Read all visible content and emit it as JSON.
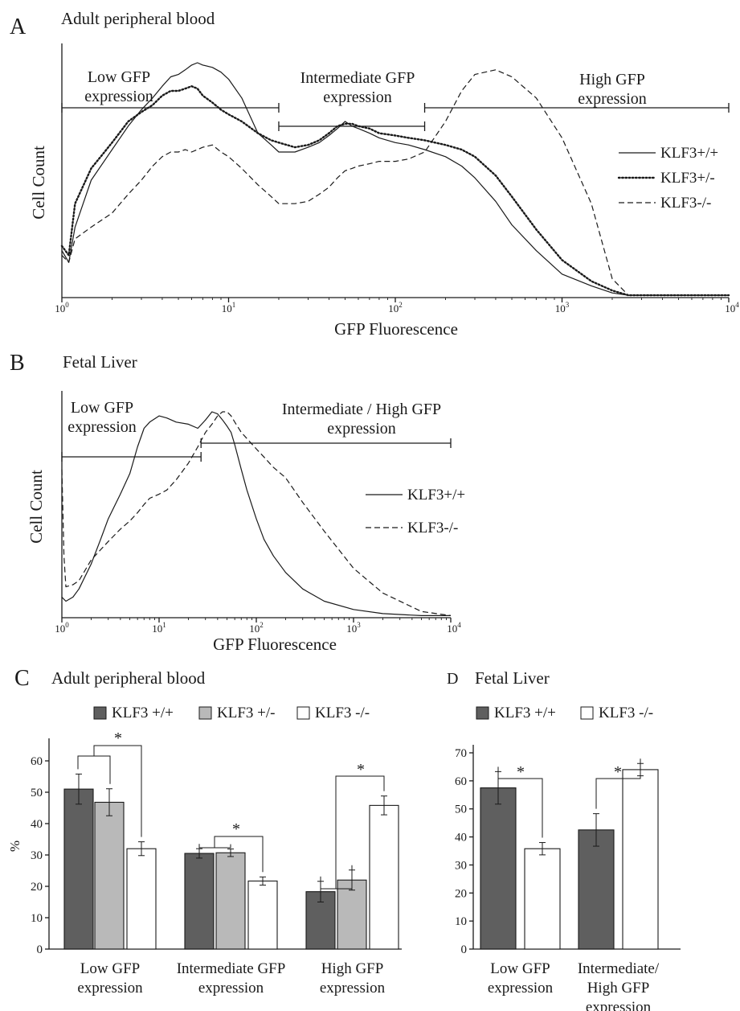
{
  "panels": {
    "A": {
      "letter": "A",
      "title": "Adult peripheral blood",
      "ylabel": "Cell Count",
      "xlabel": "GFP Fluorescence",
      "ranges": [
        {
          "label": [
            "Low GFP",
            "expression"
          ],
          "from": 1,
          "to": 20
        },
        {
          "label": [
            "Intermediate GFP",
            "expression"
          ],
          "from": 20,
          "to": 150
        },
        {
          "label": [
            "High GFP",
            "expression"
          ],
          "from": 150,
          "to": 10000
        }
      ],
      "legend": [
        "KLF3+/+",
        "KLF3+/-",
        "KLF3-/-"
      ]
    },
    "B": {
      "letter": "B",
      "title": "Fetal Liver",
      "ylabel": "Cell Count",
      "xlabel": "GFP Fluorescence",
      "ranges": [
        {
          "label": [
            "Low GFP",
            "expression"
          ],
          "from": 1,
          "to": 27
        },
        {
          "label": [
            "Intermediate / High GFP",
            "expression"
          ],
          "from": 27,
          "to": 10000
        }
      ],
      "legend": [
        "KLF3+/+",
        "KLF3-/-"
      ]
    },
    "C": {
      "letter": "C",
      "title": "Adult peripheral blood",
      "legend": [
        "KLF3 +/+",
        "KLF3 +/-",
        "KLF3 -/-"
      ],
      "ylabel": "%",
      "significance": "*"
    },
    "D": {
      "letter": "D",
      "title": "Fetal Liver",
      "legend": [
        "KLF3 +/+",
        "KLF3 -/-"
      ],
      "significance": "*"
    }
  },
  "colors": {
    "wt": "#5f5f5f",
    "het": "#b9b9b9",
    "ko": "#ffffff",
    "ink": "#1a1a1a"
  },
  "chart_data": [
    {
      "type": "line",
      "panel": "A",
      "xscale": "log",
      "xlim": [
        1,
        10000
      ],
      "xticks": [
        "10^0",
        "10^1",
        "10^2",
        "10^3",
        "10^4"
      ],
      "series": [
        {
          "name": "KLF3+/+",
          "style": "solid",
          "x": [
            1,
            1.1,
            1.2,
            1.5,
            2,
            2.5,
            3,
            3.5,
            4,
            4.5,
            5,
            5.5,
            6,
            6.5,
            7,
            8,
            9,
            10,
            12,
            15,
            18,
            20,
            25,
            30,
            35,
            40,
            45,
            50,
            55,
            60,
            70,
            80,
            100,
            120,
            150,
            200,
            250,
            300,
            400,
            500,
            700,
            1000,
            1500,
            2000,
            2500,
            3000,
            5000,
            10000
          ],
          "y": [
            20,
            15,
            30,
            50,
            63,
            73,
            80,
            85,
            90,
            94,
            95,
            97,
            99,
            100,
            99,
            98,
            96,
            93,
            85,
            70,
            65,
            62,
            62,
            64,
            66,
            69,
            72,
            75,
            73,
            72,
            70,
            68,
            66,
            65,
            63,
            60,
            56,
            51,
            41,
            31,
            20,
            10,
            5,
            2,
            1,
            1,
            1,
            1
          ]
        },
        {
          "name": "KLF3+/-",
          "style": "dotted",
          "x": [
            1,
            1.1,
            1.2,
            1.5,
            2,
            2.5,
            3,
            3.5,
            4,
            4.5,
            5,
            5.5,
            6,
            6.5,
            7,
            8,
            9,
            10,
            12,
            15,
            18,
            20,
            25,
            30,
            35,
            40,
            45,
            50,
            55,
            60,
            70,
            80,
            100,
            120,
            150,
            200,
            250,
            300,
            400,
            500,
            700,
            1000,
            1500,
            2000,
            2500,
            3000,
            5000,
            10000
          ],
          "y": [
            22,
            18,
            40,
            55,
            66,
            75,
            79,
            82,
            86,
            88,
            88,
            89,
            90,
            89,
            86,
            83,
            80,
            78,
            75,
            70,
            67,
            66,
            64,
            65,
            67,
            70,
            73,
            74,
            74,
            73,
            72,
            70,
            69,
            68,
            67,
            65,
            63,
            60,
            52,
            43,
            29,
            16,
            7,
            3,
            1,
            1,
            1,
            1
          ]
        },
        {
          "name": "KLF3-/-",
          "style": "dashed",
          "x": [
            1,
            1.1,
            1.2,
            1.5,
            2,
            2.5,
            3,
            3.5,
            4,
            4.5,
            5,
            5.5,
            6,
            6.5,
            7,
            8,
            9,
            10,
            12,
            15,
            18,
            20,
            25,
            30,
            35,
            40,
            45,
            50,
            55,
            60,
            70,
            80,
            100,
            120,
            150,
            200,
            250,
            300,
            400,
            500,
            700,
            1000,
            1500,
            2000,
            2500,
            3000,
            5000,
            10000
          ],
          "y": [
            18,
            15,
            25,
            30,
            36,
            44,
            50,
            56,
            60,
            62,
            62,
            63,
            62,
            63,
            64,
            65,
            62,
            60,
            55,
            48,
            43,
            40,
            40,
            41,
            44,
            47,
            51,
            54,
            55,
            56,
            57,
            58,
            58,
            59,
            62,
            75,
            88,
            95,
            97,
            94,
            85,
            68,
            40,
            8,
            1,
            1,
            1,
            1
          ]
        }
      ]
    },
    {
      "type": "line",
      "panel": "B",
      "xscale": "log",
      "xlim": [
        1,
        10000
      ],
      "xticks": [
        "10^0",
        "10^1",
        "10^2",
        "10^3",
        "10^4"
      ],
      "series": [
        {
          "name": "KLF3+/+",
          "style": "solid",
          "x": [
            1,
            1.1,
            1.3,
            1.5,
            2,
            2.5,
            3,
            4,
            5,
            6,
            7,
            8,
            10,
            12,
            15,
            20,
            25,
            30,
            35,
            40,
            45,
            50,
            55,
            60,
            70,
            80,
            100,
            120,
            150,
            200,
            300,
            500,
            1000,
            2000,
            5000,
            10000
          ],
          "y": [
            10,
            8,
            10,
            14,
            26,
            38,
            48,
            60,
            70,
            83,
            92,
            95,
            98,
            97,
            95,
            94,
            92,
            96,
            100,
            99,
            96,
            93,
            90,
            84,
            72,
            62,
            48,
            38,
            30,
            22,
            14,
            8,
            4,
            2,
            1,
            1
          ]
        },
        {
          "name": "KLF3-/-",
          "style": "dashed",
          "x": [
            1,
            1.05,
            1.1,
            1.3,
            1.5,
            2,
            2.5,
            3,
            4,
            5,
            6,
            7,
            8,
            10,
            12,
            15,
            20,
            25,
            30,
            35,
            40,
            45,
            50,
            55,
            60,
            70,
            80,
            100,
            120,
            150,
            200,
            300,
            500,
            1000,
            2000,
            5000,
            10000
          ],
          "y": [
            72,
            30,
            15,
            16,
            18,
            28,
            33,
            37,
            43,
            47,
            51,
            55,
            58,
            60,
            62,
            67,
            75,
            83,
            90,
            94,
            98,
            100,
            100,
            98,
            95,
            90,
            87,
            82,
            78,
            73,
            68,
            56,
            42,
            24,
            12,
            3,
            1
          ]
        }
      ]
    },
    {
      "type": "bar",
      "panel": "C",
      "ylim": [
        0,
        60
      ],
      "yticks": [
        0,
        10,
        20,
        30,
        40,
        50,
        60
      ],
      "categories": [
        [
          "Low GFP",
          "expression"
        ],
        [
          "Intermediate GFP",
          "expression"
        ],
        [
          "High GFP",
          "expression"
        ]
      ],
      "series": [
        {
          "name": "KLF3 +/+",
          "values": [
            51,
            30.5,
            18.3
          ],
          "errors": [
            4.8,
            1.5,
            3.3
          ]
        },
        {
          "name": "KLF3 +/-",
          "values": [
            46.8,
            30.7,
            22
          ],
          "errors": [
            4.3,
            1.2,
            3.2
          ]
        },
        {
          "name": "KLF3 -/-",
          "values": [
            32,
            21.7,
            45.8
          ],
          "errors": [
            2.2,
            1.3,
            3
          ]
        }
      ]
    },
    {
      "type": "bar",
      "panel": "D",
      "ylim": [
        0,
        70
      ],
      "yticks": [
        0,
        10,
        20,
        30,
        40,
        50,
        60,
        70
      ],
      "categories": [
        [
          "Low GFP",
          "expression"
        ],
        [
          "Intermediate/",
          "High GFP",
          "expression"
        ]
      ],
      "series": [
        {
          "name": "KLF3 +/+",
          "values": [
            57.5,
            42.5
          ],
          "errors": [
            5.8,
            5.8
          ]
        },
        {
          "name": "KLF3 -/-",
          "values": [
            35.8,
            64
          ],
          "errors": [
            2.2,
            2.2
          ]
        }
      ]
    }
  ]
}
